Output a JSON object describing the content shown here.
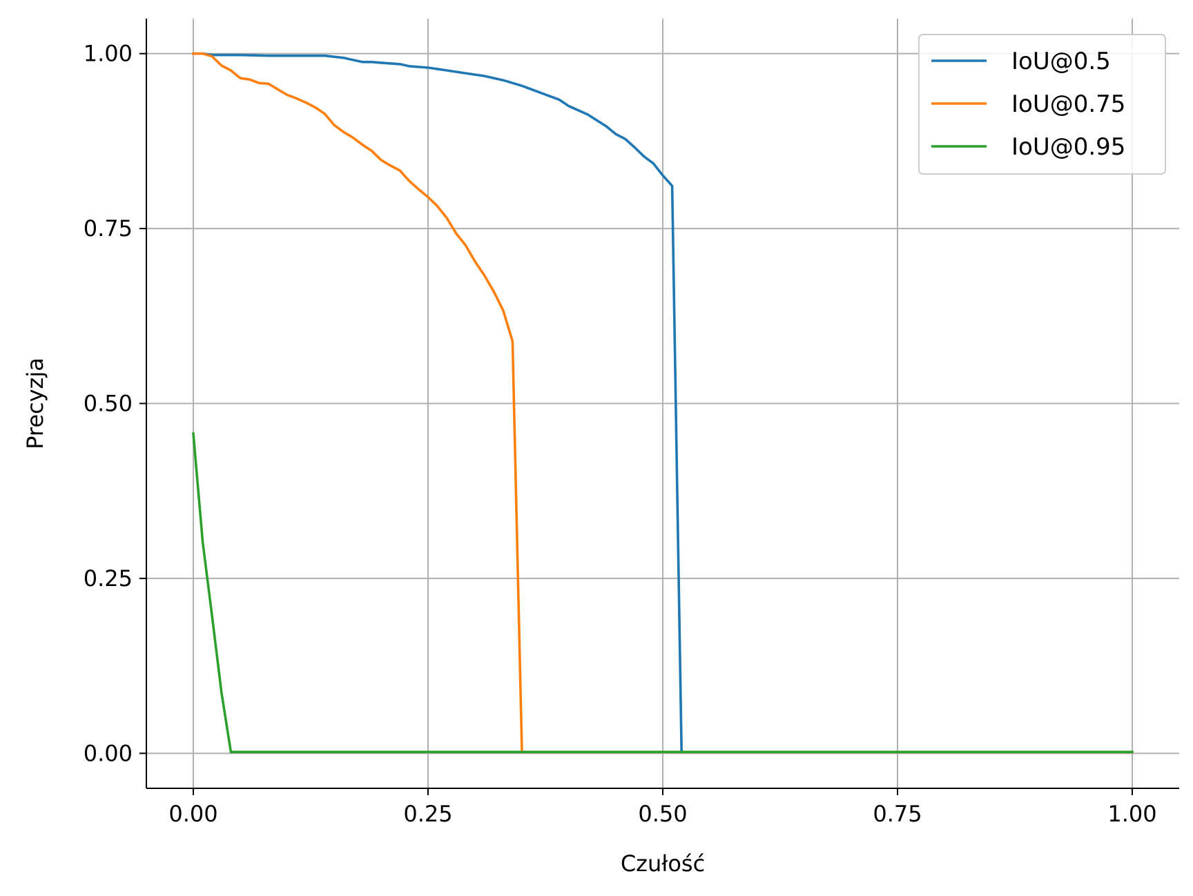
{
  "chart_data": {
    "type": "line",
    "title": "",
    "xlabel": "Czułość",
    "ylabel": "Precyzja",
    "xlim": [
      -0.05,
      1.05
    ],
    "ylim": [
      -0.05,
      1.05
    ],
    "xticks": [
      0.0,
      0.25,
      0.5,
      0.75,
      1.0
    ],
    "yticks": [
      0.0,
      0.25,
      0.5,
      0.75,
      1.0
    ],
    "xtick_labels": [
      "0.00",
      "0.25",
      "0.50",
      "0.75",
      "1.00"
    ],
    "ytick_labels": [
      "0.00",
      "0.25",
      "0.50",
      "0.75",
      "1.00"
    ],
    "grid": true,
    "legend_position": "top-right",
    "series": [
      {
        "name": "IoU@0.5",
        "color": "#1f77b4",
        "x": [
          0.0,
          0.01,
          0.02,
          0.05,
          0.08,
          0.1,
          0.12,
          0.14,
          0.16,
          0.18,
          0.19,
          0.2,
          0.22,
          0.23,
          0.25,
          0.27,
          0.29,
          0.31,
          0.33,
          0.35,
          0.37,
          0.39,
          0.4,
          0.42,
          0.44,
          0.45,
          0.46,
          0.47,
          0.48,
          0.49,
          0.5,
          0.51,
          0.52,
          0.6,
          0.7,
          0.8,
          0.9,
          1.0
        ],
        "y": [
          1.0,
          1.0,
          0.998,
          0.998,
          0.997,
          0.997,
          0.997,
          0.997,
          0.994,
          0.988,
          0.988,
          0.987,
          0.985,
          0.982,
          0.98,
          0.976,
          0.972,
          0.968,
          0.962,
          0.954,
          0.944,
          0.934,
          0.925,
          0.913,
          0.896,
          0.885,
          0.878,
          0.866,
          0.853,
          0.843,
          0.826,
          0.811,
          0.002,
          0.002,
          0.002,
          0.002,
          0.002,
          0.002
        ]
      },
      {
        "name": "IoU@0.75",
        "color": "#ff7f0e",
        "x": [
          0.0,
          0.01,
          0.02,
          0.03,
          0.04,
          0.05,
          0.06,
          0.07,
          0.08,
          0.09,
          0.1,
          0.11,
          0.12,
          0.13,
          0.14,
          0.15,
          0.16,
          0.17,
          0.18,
          0.19,
          0.2,
          0.21,
          0.22,
          0.23,
          0.24,
          0.25,
          0.26,
          0.27,
          0.28,
          0.29,
          0.3,
          0.31,
          0.32,
          0.33,
          0.34,
          0.35,
          0.4,
          0.6,
          0.8,
          1.0
        ],
        "y": [
          1.0,
          1.0,
          0.996,
          0.983,
          0.976,
          0.965,
          0.963,
          0.958,
          0.957,
          0.949,
          0.941,
          0.936,
          0.93,
          0.923,
          0.914,
          0.898,
          0.888,
          0.88,
          0.87,
          0.861,
          0.848,
          0.84,
          0.833,
          0.818,
          0.806,
          0.795,
          0.782,
          0.765,
          0.743,
          0.726,
          0.703,
          0.683,
          0.66,
          0.633,
          0.589,
          0.002,
          0.002,
          0.002,
          0.002,
          0.002
        ]
      },
      {
        "name": "IoU@0.95",
        "color": "#2ca02c",
        "x": [
          0.0,
          0.01,
          0.02,
          0.03,
          0.04,
          0.1,
          0.3,
          0.5,
          0.7,
          1.0
        ],
        "y": [
          0.457,
          0.302,
          0.196,
          0.087,
          0.002,
          0.002,
          0.002,
          0.002,
          0.002,
          0.002
        ]
      }
    ]
  }
}
